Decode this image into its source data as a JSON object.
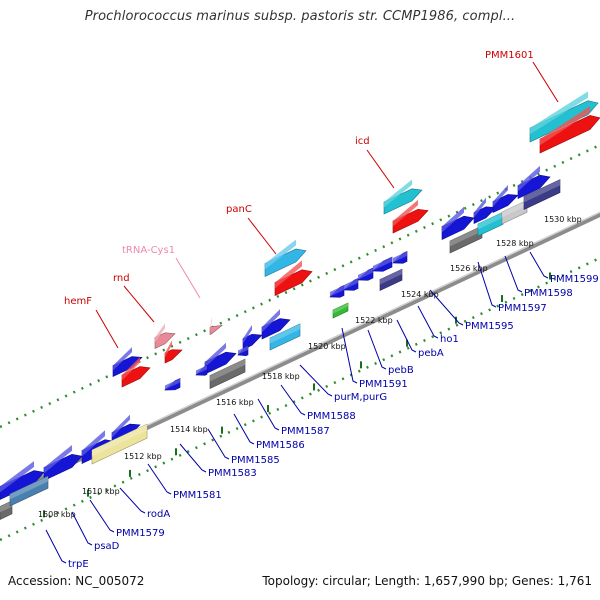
{
  "title": "Prochlorococcus marinus subsp. pastoris str. CCMP1986, compl...",
  "footer": {
    "accession": "Accession: NC_005072",
    "topology": "Topology: circular; Length: 1,657,990 bp; Genes: 1,761"
  },
  "colors": {
    "blue": "#1515d6",
    "red": "#ee1111",
    "cyan": "#22c0d0",
    "skyblue": "#33b6e6",
    "gray": "#6a6a6a",
    "navy": "#3b3b88",
    "pink": "#e88a98",
    "green": "#33bb33",
    "yellow": "#ece39c",
    "steel": "#4a80b0",
    "lightgray": "#c8c8c8",
    "label_red": "#cc0000",
    "label_blue": "#0000aa",
    "label_pink": "#ee88b0"
  },
  "ticks": [
    "1508 kbp",
    "1510 kbp",
    "1512 kbp",
    "1514 kbp",
    "1516 kbp",
    "1518 kbp",
    "1520 kbp",
    "1522 kbp",
    "1524 kbp",
    "1526 kbp",
    "1528 kbp",
    "1530 kbp"
  ],
  "labels_top": [
    "hemF",
    "rnd",
    "tRNA-Cys1",
    "panC",
    "icd",
    "PMM1601"
  ],
  "labels_bottom": [
    "trpE",
    "psaD",
    "PMM1579",
    "rodA",
    "PMM1581",
    "PMM1583",
    "PMM1585",
    "PMM1586",
    "PMM1587",
    "PMM1588",
    "purM,purG",
    "PMM1591",
    "pebB",
    "pebA",
    "ho1",
    "PMM1595",
    "PMM1597",
    "PMM1598",
    "PMM1599"
  ]
}
